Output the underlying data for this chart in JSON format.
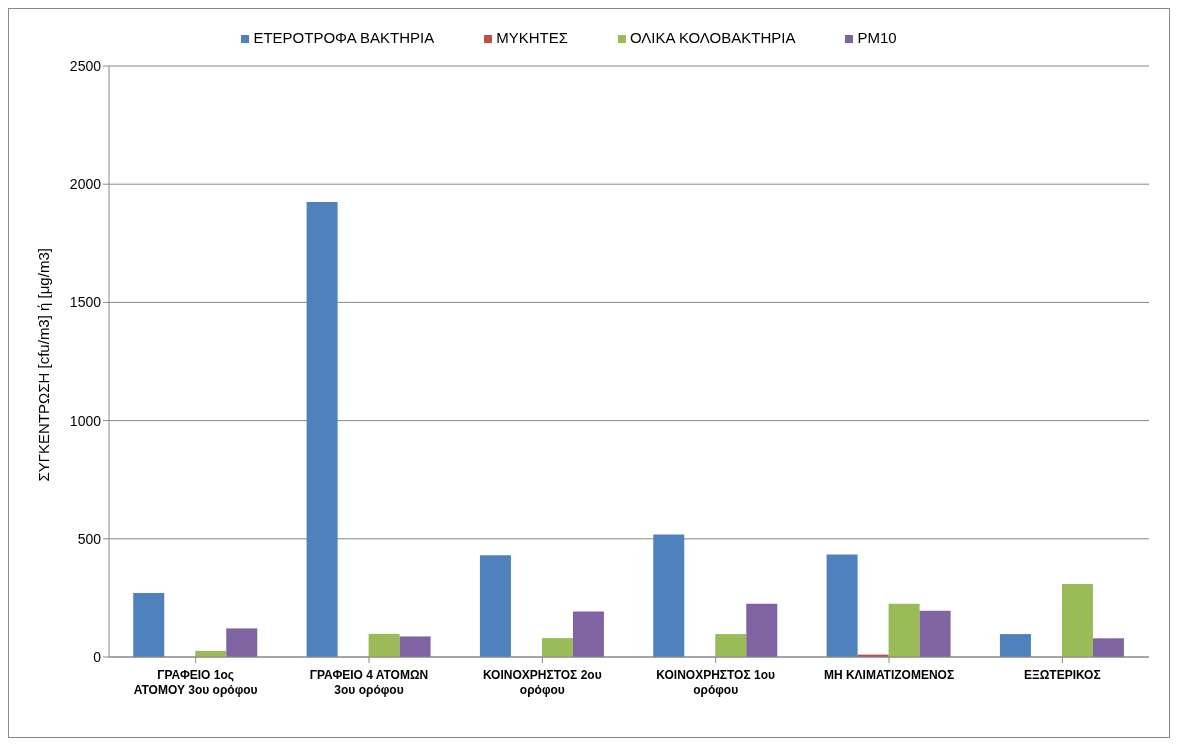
{
  "chart_data": {
    "type": "bar",
    "ylabel": "ΣΥΓΚΕΝΤΡΩΣΗ [cfu/m3] ή [μg/m3]",
    "categories": [
      "ΓΡΑΦΕΙΟ 1ος ΑΤΟΜΟΥ 3ου ορόφου",
      "ΓΡΑΦΕΙΟ 4 ΑΤΟΜΩΝ 3ου ορόφου",
      "ΚΟΙΝΟΧΡΗΣΤΟΣ 2ου ορόφου",
      "ΚΟΙΝΟΧΡΗΣΤΟΣ 1ου ορόφου",
      "ΜΗ ΚΛΙΜΑΤΙΖΟΜΕΝΟΣ",
      "ΕΞΩΤΕΡΙΚΟΣ"
    ],
    "series": [
      {
        "name": "ΕΤΕΡΟΤΡΟΦΑ ΒΑΚΤΗΡΙΑ",
        "color": "#4f81bd",
        "values": [
          271,
          1925,
          430,
          518,
          434,
          97
        ]
      },
      {
        "name": "ΜΥΚΗΤΕΣ",
        "color": "#c0504d",
        "values": [
          0,
          0,
          0,
          0,
          10,
          0
        ]
      },
      {
        "name": "ΟΛΙΚΑ ΚΟΛΟΒΑΚΤΗΡΙΑ",
        "color": "#9bbb59",
        "values": [
          26,
          98,
          80,
          97,
          225,
          309
        ]
      },
      {
        "name": "PM10",
        "color": "#8064a2",
        "values": [
          121,
          87,
          192,
          225,
          196,
          79
        ]
      }
    ],
    "ylim": [
      0,
      2500
    ],
    "yticks": [
      0,
      500,
      1000,
      1500,
      2000,
      2500
    ],
    "grid": "y",
    "legend": "top"
  }
}
